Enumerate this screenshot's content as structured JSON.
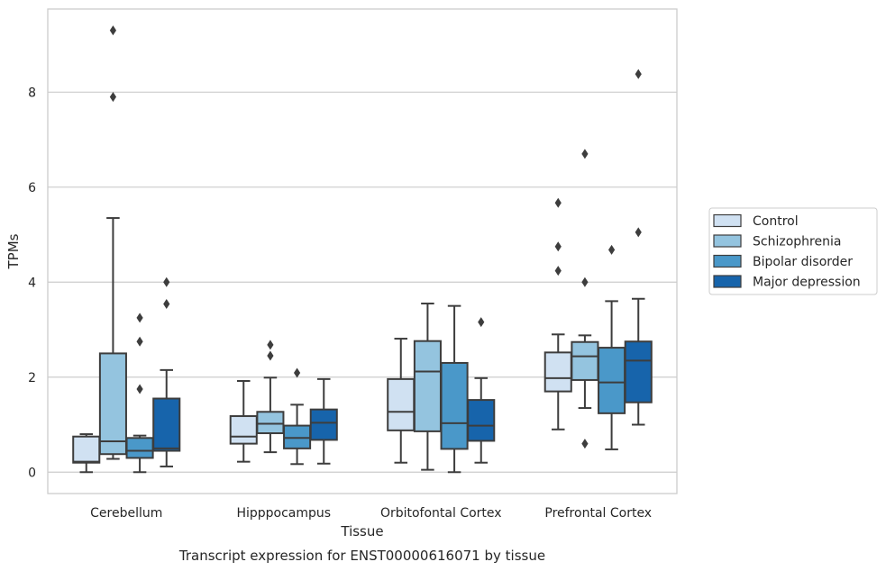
{
  "chart_data": {
    "type": "box",
    "caption": "Transcript expression for ENST00000616071 by tissue",
    "xlabel": "Tissue",
    "ylabel": "TPMs",
    "ylim": [
      -0.45,
      9.75
    ],
    "yticks": [
      0,
      2,
      4,
      6,
      8
    ],
    "grid": "horizontal",
    "legend_position": "right",
    "categories": [
      "Cerebellum",
      "Hipppocampus",
      "Orbitofontal Cortex",
      "Prefrontal Cortex"
    ],
    "series": [
      {
        "name": "Control",
        "color": "#d0e1f2",
        "boxes": [
          {
            "whislo": 0.0,
            "q1": 0.2,
            "med": 0.22,
            "q3": 0.75,
            "whishi": 0.8,
            "fliers": []
          },
          {
            "whislo": 0.22,
            "q1": 0.6,
            "med": 0.75,
            "q3": 1.18,
            "whishi": 1.92,
            "fliers": []
          },
          {
            "whislo": 0.2,
            "q1": 0.88,
            "med": 1.27,
            "q3": 1.96,
            "whishi": 2.81,
            "fliers": []
          },
          {
            "whislo": 0.9,
            "q1": 1.7,
            "med": 1.98,
            "q3": 2.52,
            "whishi": 2.9,
            "fliers": [
              5.67,
              4.75,
              4.24
            ]
          }
        ]
      },
      {
        "name": "Schizophrenia",
        "color": "#94c4df",
        "boxes": [
          {
            "whislo": 0.28,
            "q1": 0.38,
            "med": 0.65,
            "q3": 2.5,
            "whishi": 5.35,
            "fliers": [
              9.3,
              7.9
            ]
          },
          {
            "whislo": 0.42,
            "q1": 0.82,
            "med": 1.02,
            "q3": 1.27,
            "whishi": 1.99,
            "fliers": [
              2.68,
              2.45
            ]
          },
          {
            "whislo": 0.05,
            "q1": 0.86,
            "med": 2.12,
            "q3": 2.76,
            "whishi": 3.55,
            "fliers": []
          },
          {
            "whislo": 1.35,
            "q1": 1.94,
            "med": 2.44,
            "q3": 2.74,
            "whishi": 2.88,
            "fliers": [
              6.7,
              4.0,
              0.6
            ]
          }
        ]
      },
      {
        "name": "Bipolar disorder",
        "color": "#4a98c9",
        "boxes": [
          {
            "whislo": 0.0,
            "q1": 0.3,
            "med": 0.45,
            "q3": 0.72,
            "whishi": 0.77,
            "fliers": [
              3.25,
              2.75,
              1.75
            ]
          },
          {
            "whislo": 0.17,
            "q1": 0.5,
            "med": 0.72,
            "q3": 0.98,
            "whishi": 1.42,
            "fliers": [
              2.09
            ]
          },
          {
            "whislo": 0.0,
            "q1": 0.49,
            "med": 1.03,
            "q3": 2.3,
            "whishi": 3.5,
            "fliers": []
          },
          {
            "whislo": 0.48,
            "q1": 1.24,
            "med": 1.89,
            "q3": 2.62,
            "whishi": 3.6,
            "fliers": [
              4.68
            ]
          }
        ]
      },
      {
        "name": "Major depression",
        "color": "#1764ab",
        "boxes": [
          {
            "whislo": 0.12,
            "q1": 0.45,
            "med": 0.5,
            "q3": 1.55,
            "whishi": 2.15,
            "fliers": [
              4.0,
              3.54
            ]
          },
          {
            "whislo": 0.18,
            "q1": 0.68,
            "med": 1.04,
            "q3": 1.32,
            "whishi": 1.96,
            "fliers": []
          },
          {
            "whislo": 0.2,
            "q1": 0.66,
            "med": 0.98,
            "q3": 1.52,
            "whishi": 1.98,
            "fliers": [
              3.16
            ]
          },
          {
            "whislo": 1.0,
            "q1": 1.47,
            "med": 2.35,
            "q3": 2.75,
            "whishi": 3.65,
            "fliers": [
              8.38,
              5.05
            ]
          }
        ]
      }
    ]
  }
}
